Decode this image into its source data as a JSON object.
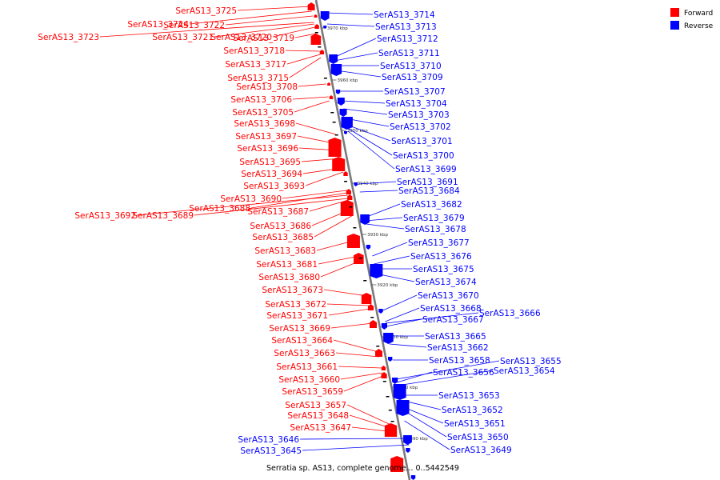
{
  "legend": {
    "forward_label": "Forward",
    "reverse_label": "Reverse",
    "forward_color": "#ff0000",
    "reverse_color": "#0000ff"
  },
  "genome_caption": "Serratia sp. AS13, complete genome... 0..5442549",
  "ticks": [
    "3970 kbp",
    "3960 kbp",
    "3950 kbp",
    "3940 kbp",
    "3930 kbp",
    "3920 kbp",
    "3910 kbp",
    "3900 kbp",
    "3890 kbp"
  ],
  "forward_genes": [
    "SerAS13_3725",
    "SerAS13_3724",
    "SerAS13_3722",
    "SerAS13_3723",
    "SerAS13_3721",
    "SerAS13_3720",
    "SerAS13_3719",
    "SerAS13_3718",
    "SerAS13_3717",
    "SerAS13_3715",
    "SerAS13_3708",
    "SerAS13_3706",
    "SerAS13_3705",
    "SerAS13_3698",
    "SerAS13_3697",
    "SerAS13_3696",
    "SerAS13_3695",
    "SerAS13_3694",
    "SerAS13_3693",
    "SerAS13_3690",
    "SerAS13_3688",
    "SerAS13_3692",
    "SerAS13_3689",
    "SerAS13_3687",
    "SerAS13_3686",
    "SerAS13_3685",
    "SerAS13_3683",
    "SerAS13_3681",
    "SerAS13_3680",
    "SerAS13_3673",
    "SerAS13_3672",
    "SerAS13_3671",
    "SerAS13_3669",
    "SerAS13_3664",
    "SerAS13_3663",
    "SerAS13_3661",
    "SerAS13_3660",
    "SerAS13_3659",
    "SerAS13_3657",
    "SerAS13_3648",
    "SerAS13_3647"
  ],
  "reverse_genes": [
    "SerAS13_3714",
    "SerAS13_3713",
    "SerAS13_3712",
    "SerAS13_3711",
    "SerAS13_3710",
    "SerAS13_3709",
    "SerAS13_3707",
    "SerAS13_3704",
    "SerAS13_3703",
    "SerAS13_3702",
    "SerAS13_3701",
    "SerAS13_3700",
    "SerAS13_3699",
    "SerAS13_3691",
    "SerAS13_3684",
    "SerAS13_3682",
    "SerAS13_3679",
    "SerAS13_3678",
    "SerAS13_3677",
    "SerAS13_3676",
    "SerAS13_3675",
    "SerAS13_3674",
    "SerAS13_3670",
    "SerAS13_3668",
    "SerAS13_3666",
    "SerAS13_3667",
    "SerAS13_3665",
    "SerAS13_3662",
    "SerAS13_3658",
    "SerAS13_3655",
    "SerAS13_3656",
    "SerAS13_3654",
    "SerAS13_3653",
    "SerAS13_3652",
    "SerAS13_3651",
    "SerAS13_3650",
    "SerAS13_3649",
    "SerAS13_3646",
    "SerAS13_3645"
  ]
}
